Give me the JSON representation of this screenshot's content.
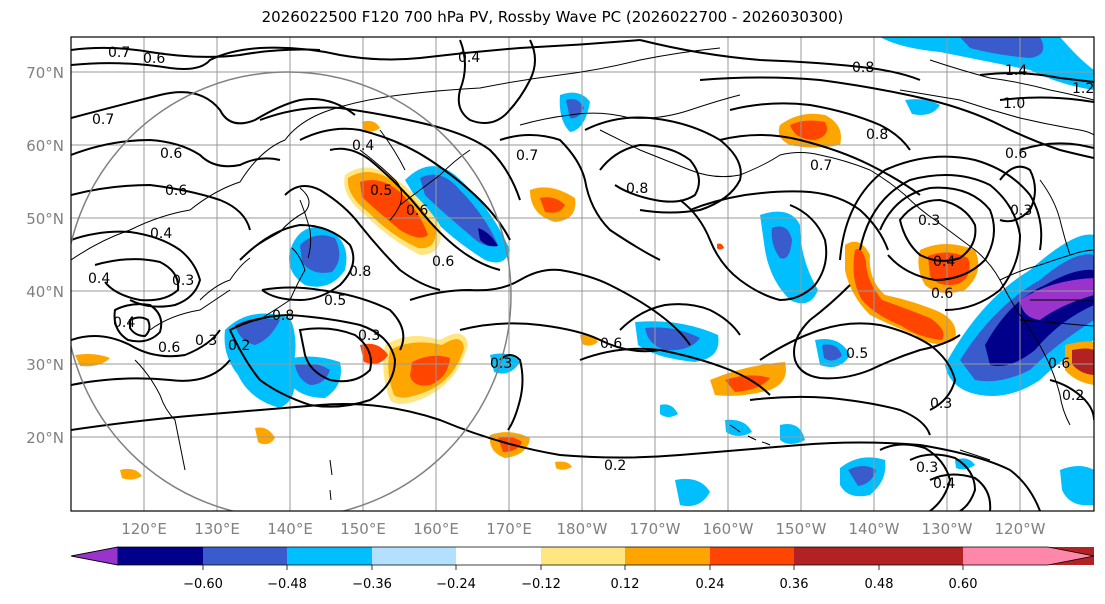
{
  "title": "2026022500 F120 700 hPa PV, Rossby Wave PC (2026022700 - 2026030300)",
  "lat_ticks": [
    "70°N",
    "60°N",
    "50°N",
    "40°N",
    "30°N",
    "20°N"
  ],
  "lon_ticks": [
    "120°E",
    "130°E",
    "140°E",
    "150°E",
    "160°E",
    "170°E",
    "180°W",
    "170°W",
    "160°W",
    "150°W",
    "140°W",
    "130°W",
    "120°W"
  ],
  "colorbar": {
    "labels": [
      "−0.60",
      "−0.48",
      "−0.36",
      "−0.24",
      "−0.12",
      "0.12",
      "0.24",
      "0.36",
      "0.48",
      "0.60"
    ],
    "colors": [
      "#9933cc",
      "#00008b",
      "#3a5bcc",
      "#00bfff",
      "#b3e0ff",
      "#ffffff",
      "#ffe680",
      "#ffa500",
      "#ff4500",
      "#b22222",
      "#ff88aa"
    ]
  },
  "contour_labels": [
    "0.7",
    "0.6",
    "0.4",
    "0.8",
    "1.4",
    "1.0",
    "1.2",
    "0.7",
    "0.6",
    "0.6",
    "0.4",
    "0.8",
    "0.6",
    "0.7",
    "0.8",
    "0.7",
    "0.8",
    "0.6",
    "0.6",
    "0.4",
    "0.3",
    "0.3",
    "0.4",
    "0.6",
    "0.5",
    "0.3",
    "0.6",
    "0.2",
    "0.3",
    "0.2",
    "0.6",
    "0.5",
    "0.3",
    "0.4",
    "0.4",
    "0.3",
    "0.3",
    "0.2",
    "0.8",
    "0.5",
    "0.4",
    "0.3",
    "0.6"
  ]
}
